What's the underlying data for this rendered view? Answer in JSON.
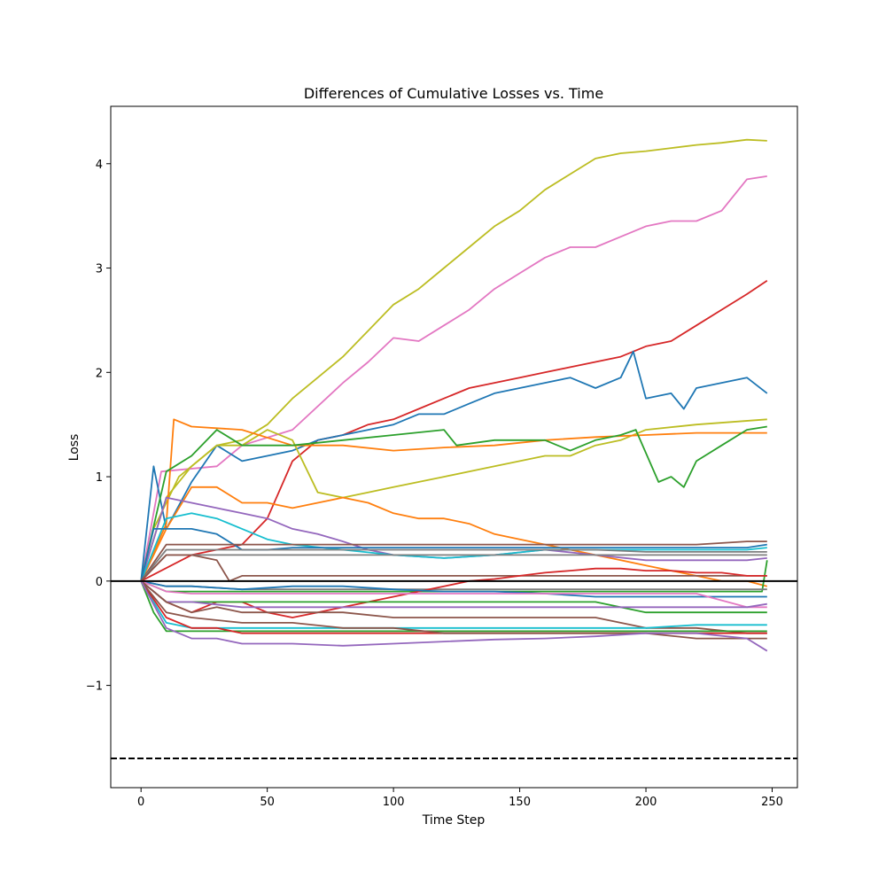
{
  "chart_data": {
    "type": "line",
    "title": "Differences of Cumulative Losses vs. Time",
    "xlabel": "Time Step",
    "ylabel": "Loss",
    "xlim": [
      -12,
      260
    ],
    "ylim": [
      -1.98,
      4.55
    ],
    "xticks": [
      0,
      50,
      100,
      150,
      200,
      250
    ],
    "yticks": [
      -1,
      0,
      1,
      2,
      3,
      4
    ],
    "ytick_labels": [
      "−1",
      "0",
      "1",
      "2",
      "3",
      "4"
    ],
    "grid": false,
    "reference_lines": [
      {
        "y": 0,
        "style": "solid",
        "color": "#000000"
      },
      {
        "y": -1.7,
        "style": "dashed",
        "color": "#000000"
      }
    ],
    "series": [
      {
        "color": "#bcbd22",
        "x": [
          0,
          10,
          20,
          30,
          40,
          50,
          60,
          70,
          80,
          90,
          100,
          110,
          120,
          130,
          140,
          150,
          160,
          170,
          180,
          190,
          200,
          210,
          220,
          230,
          240,
          248
        ],
        "y": [
          0,
          0.8,
          1.1,
          1.3,
          1.35,
          1.5,
          1.75,
          1.95,
          2.15,
          2.4,
          2.65,
          2.8,
          3.0,
          3.2,
          3.4,
          3.55,
          3.75,
          3.9,
          4.05,
          4.1,
          4.12,
          4.15,
          4.18,
          4.2,
          4.23,
          4.22
        ]
      },
      {
        "color": "#e377c2",
        "x": [
          0,
          8,
          30,
          40,
          60,
          80,
          90,
          100,
          110,
          120,
          130,
          140,
          150,
          160,
          170,
          180,
          190,
          200,
          210,
          220,
          230,
          240,
          248
        ],
        "y": [
          0,
          1.05,
          1.1,
          1.3,
          1.45,
          1.9,
          2.1,
          2.33,
          2.3,
          2.45,
          2.6,
          2.8,
          2.95,
          3.1,
          3.2,
          3.2,
          3.3,
          3.4,
          3.45,
          3.45,
          3.55,
          3.85,
          3.88
        ]
      },
      {
        "color": "#d62728",
        "x": [
          0,
          20,
          40,
          50,
          60,
          70,
          80,
          90,
          100,
          110,
          120,
          130,
          140,
          150,
          160,
          170,
          180,
          190,
          200,
          210,
          220,
          230,
          240,
          248
        ],
        "y": [
          0,
          0.25,
          0.35,
          0.6,
          1.15,
          1.35,
          1.4,
          1.5,
          1.55,
          1.65,
          1.75,
          1.85,
          1.9,
          1.95,
          2.0,
          2.05,
          2.1,
          2.15,
          2.25,
          2.3,
          2.45,
          2.6,
          2.75,
          2.88
        ]
      },
      {
        "color": "#1f77b4",
        "x": [
          0,
          5,
          10,
          20,
          30,
          40,
          50,
          60,
          70,
          80,
          90,
          100,
          110,
          120,
          130,
          140,
          150,
          160,
          170,
          180,
          190,
          195,
          200,
          210,
          215,
          220,
          230,
          240,
          248
        ],
        "y": [
          0,
          1.1,
          0.5,
          0.95,
          1.3,
          1.15,
          1.2,
          1.25,
          1.35,
          1.4,
          1.45,
          1.5,
          1.6,
          1.6,
          1.7,
          1.8,
          1.85,
          1.9,
          1.95,
          1.85,
          1.95,
          2.2,
          1.75,
          1.8,
          1.65,
          1.85,
          1.9,
          1.95,
          1.8
        ]
      },
      {
        "color": "#bcbd22",
        "x": [
          0,
          5,
          15,
          30,
          40,
          50,
          60,
          70,
          80,
          90,
          100,
          120,
          140,
          160,
          170,
          180,
          190,
          200,
          220,
          248
        ],
        "y": [
          0,
          0.5,
          1.0,
          1.3,
          1.3,
          1.45,
          1.35,
          0.85,
          0.8,
          0.85,
          0.9,
          1.0,
          1.1,
          1.2,
          1.2,
          1.3,
          1.35,
          1.45,
          1.5,
          1.55
        ]
      },
      {
        "color": "#ff7f0e",
        "x": [
          0,
          10,
          13,
          20,
          40,
          60,
          80,
          100,
          120,
          140,
          160,
          180,
          200,
          220,
          248
        ],
        "y": [
          0,
          0.55,
          1.55,
          1.48,
          1.45,
          1.3,
          1.3,
          1.25,
          1.28,
          1.3,
          1.35,
          1.38,
          1.4,
          1.42,
          1.42
        ]
      },
      {
        "color": "#2ca02c",
        "x": [
          0,
          10,
          20,
          30,
          40,
          60,
          80,
          100,
          120,
          125,
          140,
          160,
          170,
          180,
          190,
          196,
          205,
          210,
          215,
          220,
          230,
          240,
          248
        ],
        "y": [
          0,
          1.05,
          1.2,
          1.45,
          1.3,
          1.3,
          1.35,
          1.4,
          1.45,
          1.3,
          1.35,
          1.35,
          1.25,
          1.35,
          1.4,
          1.45,
          0.95,
          1.0,
          0.9,
          1.15,
          1.3,
          1.45,
          1.48
        ]
      },
      {
        "color": "#ff7f0e",
        "x": [
          0,
          10,
          20,
          30,
          40,
          50,
          60,
          70,
          80,
          90,
          100,
          110,
          120,
          130,
          140,
          150,
          160,
          170,
          180,
          190,
          200,
          210,
          220,
          230,
          240,
          248
        ],
        "y": [
          0,
          0.5,
          0.9,
          0.9,
          0.75,
          0.75,
          0.7,
          0.75,
          0.8,
          0.75,
          0.65,
          0.6,
          0.6,
          0.55,
          0.45,
          0.4,
          0.35,
          0.3,
          0.25,
          0.2,
          0.15,
          0.1,
          0.05,
          0.0,
          0.0,
          -0.05
        ]
      },
      {
        "color": "#9467bd",
        "x": [
          0,
          10,
          20,
          30,
          40,
          50,
          60,
          70,
          80,
          90,
          100,
          120,
          140,
          160,
          180,
          200,
          220,
          240,
          248
        ],
        "y": [
          0,
          0.8,
          0.75,
          0.7,
          0.65,
          0.6,
          0.5,
          0.45,
          0.38,
          0.3,
          0.25,
          0.22,
          0.25,
          0.3,
          0.25,
          0.2,
          0.2,
          0.2,
          0.22
        ]
      },
      {
        "color": "#17becf",
        "x": [
          0,
          10,
          20,
          30,
          40,
          50,
          60,
          80,
          100,
          120,
          140,
          160,
          180,
          200,
          220,
          240,
          248
        ],
        "y": [
          0,
          0.6,
          0.65,
          0.6,
          0.5,
          0.4,
          0.35,
          0.3,
          0.25,
          0.22,
          0.25,
          0.3,
          0.3,
          0.3,
          0.3,
          0.3,
          0.32
        ]
      },
      {
        "color": "#1f77b4",
        "x": [
          0,
          5,
          10,
          20,
          30,
          40,
          50,
          60,
          80,
          100,
          120,
          140,
          160,
          180,
          200,
          220,
          240,
          248
        ],
        "y": [
          0,
          0.5,
          0.5,
          0.5,
          0.45,
          0.3,
          0.3,
          0.32,
          0.32,
          0.32,
          0.32,
          0.32,
          0.32,
          0.32,
          0.32,
          0.32,
          0.32,
          0.35
        ]
      },
      {
        "color": "#8c564b",
        "x": [
          0,
          10,
          20,
          40,
          60,
          80,
          100,
          120,
          140,
          160,
          180,
          200,
          220,
          240,
          248
        ],
        "y": [
          0,
          0.35,
          0.35,
          0.35,
          0.35,
          0.35,
          0.35,
          0.35,
          0.35,
          0.35,
          0.35,
          0.35,
          0.35,
          0.38,
          0.38
        ]
      },
      {
        "color": "#7f7f7f",
        "x": [
          0,
          10,
          20,
          40,
          60,
          80,
          100,
          120,
          140,
          160,
          180,
          200,
          220,
          240,
          248
        ],
        "y": [
          0,
          0.3,
          0.3,
          0.3,
          0.3,
          0.3,
          0.3,
          0.3,
          0.3,
          0.3,
          0.3,
          0.28,
          0.28,
          0.28,
          0.28
        ]
      },
      {
        "color": "#7f7f7f",
        "x": [
          0,
          10,
          20,
          40,
          60,
          80,
          100,
          120,
          140,
          160,
          180,
          200,
          220,
          240,
          248
        ],
        "y": [
          0,
          0.25,
          0.25,
          0.25,
          0.25,
          0.25,
          0.25,
          0.25,
          0.25,
          0.25,
          0.25,
          0.25,
          0.25,
          0.25,
          0.25
        ]
      },
      {
        "color": "#8c564b",
        "x": [
          0,
          10,
          20,
          30,
          35,
          40,
          60,
          80,
          100,
          120,
          140,
          160,
          180,
          200,
          220,
          240,
          248
        ],
        "y": [
          0,
          0.25,
          0.25,
          0.2,
          0.0,
          0.05,
          0.05,
          0.05,
          0.05,
          0.05,
          0.05,
          0.05,
          0.05,
          0.05,
          0.05,
          0.05,
          0.05
        ]
      },
      {
        "color": "#2ca02c",
        "x": [
          0,
          10,
          20,
          40,
          60,
          80,
          100,
          120,
          140,
          160,
          180,
          200,
          220,
          240,
          246,
          248
        ],
        "y": [
          0,
          -0.1,
          -0.1,
          -0.1,
          -0.1,
          -0.1,
          -0.1,
          -0.1,
          -0.1,
          -0.1,
          -0.1,
          -0.1,
          -0.1,
          -0.1,
          -0.1,
          0.2
        ]
      },
      {
        "color": "#7f7f7f",
        "x": [
          0,
          10,
          20,
          40,
          60,
          80,
          100,
          120,
          140,
          160,
          180,
          200,
          220,
          240,
          248
        ],
        "y": [
          0,
          -0.05,
          -0.05,
          -0.08,
          -0.08,
          -0.08,
          -0.08,
          -0.08,
          -0.08,
          -0.08,
          -0.08,
          -0.08,
          -0.08,
          -0.08,
          -0.08
        ]
      },
      {
        "color": "#d62728",
        "x": [
          0,
          10,
          20,
          30,
          40,
          50,
          60,
          70,
          80,
          90,
          100,
          110,
          120,
          130,
          140,
          150,
          160,
          170,
          180,
          190,
          200,
          210,
          220,
          230,
          240,
          248
        ],
        "y": [
          0,
          -0.2,
          -0.3,
          -0.2,
          -0.2,
          -0.3,
          -0.35,
          -0.3,
          -0.25,
          -0.2,
          -0.15,
          -0.1,
          -0.05,
          0.0,
          0.02,
          0.05,
          0.08,
          0.1,
          0.12,
          0.12,
          0.1,
          0.1,
          0.08,
          0.08,
          0.05,
          0.05
        ]
      },
      {
        "color": "#1f77b4",
        "x": [
          0,
          10,
          20,
          40,
          60,
          80,
          100,
          120,
          140,
          160,
          180,
          200,
          220,
          240,
          248
        ],
        "y": [
          0,
          -0.05,
          -0.05,
          -0.08,
          -0.05,
          -0.05,
          -0.08,
          -0.1,
          -0.1,
          -0.12,
          -0.15,
          -0.15,
          -0.15,
          -0.15,
          -0.15
        ]
      },
      {
        "color": "#e377c2",
        "x": [
          0,
          10,
          20,
          40,
          60,
          80,
          100,
          120,
          140,
          160,
          180,
          200,
          220,
          240,
          248
        ],
        "y": [
          0,
          -0.1,
          -0.12,
          -0.12,
          -0.12,
          -0.12,
          -0.12,
          -0.12,
          -0.12,
          -0.12,
          -0.12,
          -0.12,
          -0.12,
          -0.25,
          -0.25
        ]
      },
      {
        "color": "#2ca02c",
        "x": [
          0,
          10,
          20,
          40,
          60,
          80,
          100,
          120,
          140,
          160,
          180,
          200,
          220,
          240,
          248
        ],
        "y": [
          0,
          -0.2,
          -0.2,
          -0.2,
          -0.2,
          -0.2,
          -0.2,
          -0.2,
          -0.2,
          -0.2,
          -0.2,
          -0.3,
          -0.3,
          -0.3,
          -0.3
        ]
      },
      {
        "color": "#9467bd",
        "x": [
          0,
          10,
          20,
          40,
          60,
          80,
          100,
          120,
          140,
          160,
          180,
          200,
          220,
          240,
          248
        ],
        "y": [
          0,
          -0.2,
          -0.2,
          -0.25,
          -0.25,
          -0.25,
          -0.25,
          -0.25,
          -0.25,
          -0.25,
          -0.25,
          -0.25,
          -0.25,
          -0.25,
          -0.22
        ]
      },
      {
        "color": "#8c564b",
        "x": [
          0,
          10,
          20,
          30,
          40,
          60,
          70,
          80,
          100,
          120,
          140,
          160,
          180,
          200,
          220,
          240,
          248
        ],
        "y": [
          0,
          -0.2,
          -0.3,
          -0.25,
          -0.3,
          -0.3,
          -0.3,
          -0.3,
          -0.35,
          -0.35,
          -0.35,
          -0.35,
          -0.35,
          -0.45,
          -0.45,
          -0.5,
          -0.5
        ]
      },
      {
        "color": "#17becf",
        "x": [
          0,
          10,
          20,
          40,
          60,
          80,
          100,
          120,
          140,
          160,
          180,
          200,
          220,
          240,
          248
        ],
        "y": [
          0,
          -0.4,
          -0.45,
          -0.45,
          -0.45,
          -0.45,
          -0.45,
          -0.45,
          -0.45,
          -0.45,
          -0.45,
          -0.45,
          -0.42,
          -0.42,
          -0.42
        ]
      },
      {
        "color": "#2ca02c",
        "x": [
          0,
          5,
          10,
          20,
          40,
          60,
          80,
          100,
          120,
          140,
          160,
          180,
          200,
          220,
          240,
          248
        ],
        "y": [
          0,
          -0.3,
          -0.48,
          -0.48,
          -0.48,
          -0.48,
          -0.48,
          -0.48,
          -0.48,
          -0.48,
          -0.48,
          -0.48,
          -0.48,
          -0.48,
          -0.48,
          -0.48
        ]
      },
      {
        "color": "#d62728",
        "x": [
          0,
          10,
          20,
          30,
          40,
          60,
          80,
          100,
          120,
          140,
          160,
          180,
          200,
          220,
          240,
          248
        ],
        "y": [
          0,
          -0.35,
          -0.45,
          -0.45,
          -0.5,
          -0.5,
          -0.5,
          -0.5,
          -0.5,
          -0.5,
          -0.5,
          -0.5,
          -0.5,
          -0.5,
          -0.5,
          -0.5
        ]
      },
      {
        "color": "#8c564b",
        "x": [
          0,
          10,
          20,
          40,
          60,
          80,
          100,
          120,
          140,
          160,
          180,
          200,
          220,
          240,
          248
        ],
        "y": [
          0,
          -0.3,
          -0.35,
          -0.4,
          -0.4,
          -0.45,
          -0.45,
          -0.5,
          -0.5,
          -0.5,
          -0.5,
          -0.5,
          -0.55,
          -0.55,
          -0.55
        ]
      },
      {
        "color": "#9467bd",
        "x": [
          0,
          10,
          20,
          30,
          40,
          60,
          80,
          100,
          120,
          140,
          160,
          180,
          200,
          220,
          240,
          248
        ],
        "y": [
          0,
          -0.45,
          -0.55,
          -0.55,
          -0.6,
          -0.6,
          -0.62,
          -0.6,
          -0.58,
          -0.56,
          -0.55,
          -0.53,
          -0.5,
          -0.5,
          -0.55,
          -0.67
        ]
      }
    ]
  }
}
